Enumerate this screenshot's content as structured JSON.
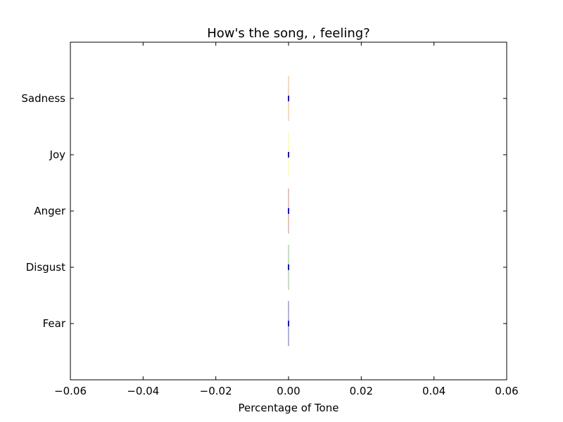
{
  "chart_data": {
    "type": "bar",
    "orientation": "horizontal",
    "title": "How's the song, , feeling?",
    "xlabel": "Percentage of Tone",
    "ylabel": "",
    "categories": [
      "Fear",
      "Disgust",
      "Anger",
      "Joy",
      "Sadness"
    ],
    "values": [
      0,
      0,
      0,
      0,
      0
    ],
    "bar_colors": [
      "#0000b0",
      "#2ca02c",
      "#d62728",
      "#ffff00",
      "#ff7f0e"
    ],
    "value_marker_color": "#0000ff",
    "xlim": [
      -0.06,
      0.06
    ],
    "xticks": [
      -0.06,
      -0.04,
      -0.02,
      0.0,
      0.02,
      0.04,
      0.06
    ],
    "xtick_labels": [
      "−0.06",
      "−0.04",
      "−0.02",
      "0.00",
      "0.02",
      "0.04",
      "0.06"
    ],
    "grid": false,
    "legend": "none"
  }
}
